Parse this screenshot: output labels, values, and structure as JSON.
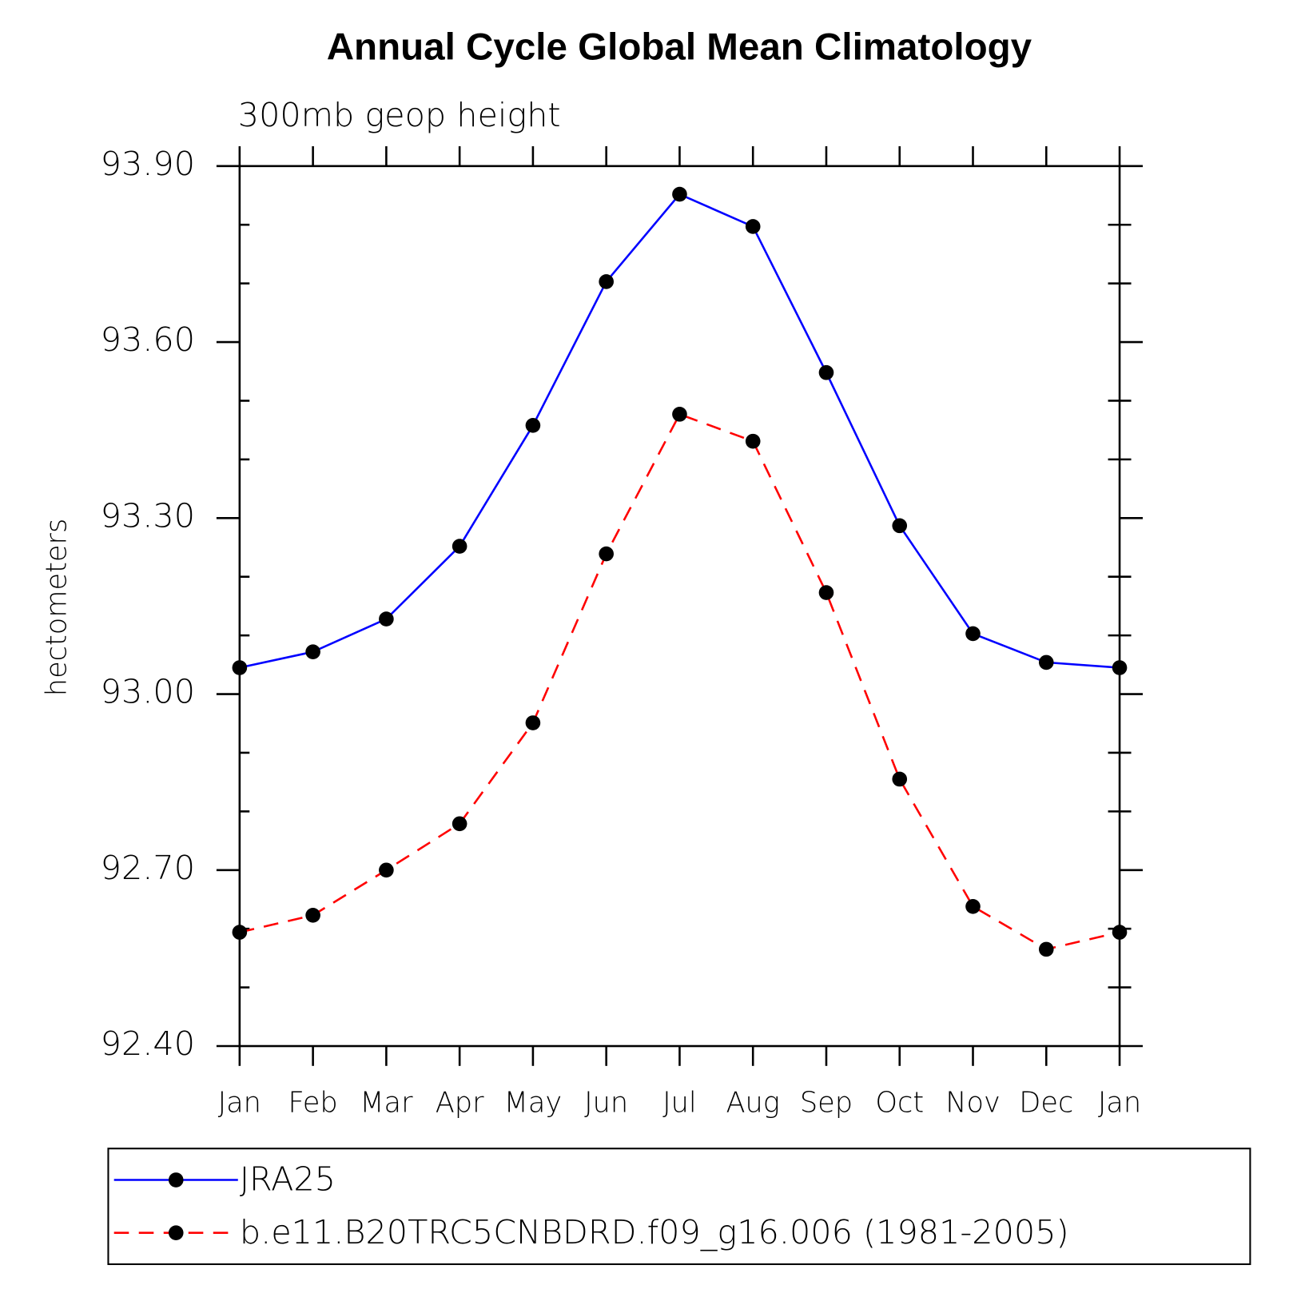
{
  "chart_data": {
    "type": "line",
    "title": "Annual Cycle Global Mean Climatology",
    "subtitle": "300mb geop height",
    "y_label": "hectometers",
    "categories": [
      "Jan",
      "Feb",
      "Mar",
      "Apr",
      "May",
      "Jun",
      "Jul",
      "Aug",
      "Sep",
      "Oct",
      "Nov",
      "Dec",
      "Jan"
    ],
    "series": [
      {
        "name": "JRA25",
        "color": "#0000ff",
        "dash": "solid",
        "marker": "circle",
        "values": [
          93.045,
          93.072,
          93.128,
          93.252,
          93.458,
          93.703,
          93.852,
          93.797,
          93.548,
          93.287,
          93.103,
          93.054,
          93.045
        ]
      },
      {
        "name": "b.e11.B20TRC5CNBDRD.f09_g16.006 (1981-2005)",
        "color": "#ff0000",
        "dash": "dashed",
        "marker": "circle",
        "values": [
          92.594,
          92.623,
          92.7,
          92.779,
          92.951,
          93.239,
          93.477,
          93.431,
          93.173,
          92.855,
          92.638,
          92.565,
          92.594
        ]
      }
    ],
    "ylim": [
      92.4,
      93.9
    ],
    "yticks": [
      {
        "value": 92.4,
        "label": "92.40"
      },
      {
        "value": 92.7,
        "label": "92.70"
      },
      {
        "value": 93.0,
        "label": "93.00"
      },
      {
        "value": 93.3,
        "label": "93.30"
      },
      {
        "value": 93.6,
        "label": "93.60"
      },
      {
        "value": 93.9,
        "label": "93.90"
      }
    ],
    "yminorticks": [
      92.5,
      92.6,
      92.8,
      92.9,
      93.1,
      93.2,
      93.4,
      93.5,
      93.7,
      93.8
    ],
    "legend": "bottom"
  }
}
